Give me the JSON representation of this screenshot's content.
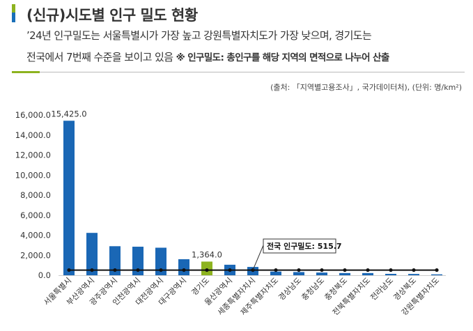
{
  "header": {
    "title": "(신규)시도별 인구 밀도 현황",
    "line1": "’24년 인구밀도는 서울특별시가 가장 높고 강원특별자치도가 가장 낮으며, 경기도는",
    "line2": "전국에서 7번째 수준을 보이고 있음",
    "note": "※ 인구밀도: 총인구를 해당 지역의 면적으로 나누어 산출",
    "source": "(출처: 「지역별고용조사」, 국가데이터처), (단위: 명/km²)"
  },
  "colors": {
    "bar": "#1a67b5",
    "highlight": "#8db31f",
    "line": "#111111",
    "accent_blue": "#1a6fb8",
    "accent_green": "#8db31f"
  },
  "chart_data": {
    "type": "bar",
    "categories": [
      "서울특별시",
      "부산광역시",
      "광주광역시",
      "인천광역시",
      "대전광역시",
      "대구광역시",
      "경기도",
      "울산광역시",
      "세종특별자치시",
      "제주특별자치도",
      "경상남도",
      "충청남도",
      "충청북도",
      "전북특별자치도",
      "전라남도",
      "경상북도",
      "강원특별자치도"
    ],
    "values": [
      15425.0,
      4230,
      2900,
      2850,
      2750,
      1600,
      1364.0,
      1050,
      830,
      370,
      320,
      270,
      220,
      220,
      140,
      130,
      90
    ],
    "highlight_index": 6,
    "data_labels": {
      "0": "15,425.0",
      "6": "1,364.0"
    },
    "reference_line": {
      "value": 515.7,
      "label": "전국 인구밀도: 515.7"
    },
    "yticks": [
      "0.0",
      "2,000.0",
      "4,000.0",
      "6,000.0",
      "8,000.0",
      "10,000.0",
      "12,000.0",
      "14,000.0",
      "16,000.0"
    ],
    "ylim": [
      0,
      16000
    ],
    "grid": false
  }
}
